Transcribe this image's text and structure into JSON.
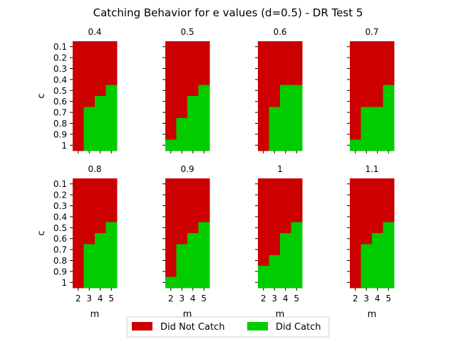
{
  "chart_data": {
    "type": "heatmap",
    "title": "Catching Behavior for e values (d=0.5) - DR Test 5",
    "xlabel": "m",
    "ylabel": "c",
    "x_categories": [
      "2",
      "3",
      "4",
      "5"
    ],
    "y_categories": [
      "0.1",
      "0.2",
      "0.3",
      "0.4",
      "0.5",
      "0.6",
      "0.7",
      "0.8",
      "0.9",
      "1"
    ],
    "legend": {
      "placement": "bottom-center",
      "items": [
        {
          "label": "Did Not Catch",
          "color": "#cc0000"
        },
        {
          "label": "Did Catch",
          "color": "#00cc00"
        }
      ]
    },
    "panels": [
      {
        "title": "0.4",
        "catch_from_c": [
          11,
          7,
          6,
          5
        ]
      },
      {
        "title": "0.5",
        "catch_from_c": [
          10,
          8,
          6,
          5
        ]
      },
      {
        "title": "0.6",
        "catch_from_c": [
          11,
          7,
          5,
          5
        ]
      },
      {
        "title": "0.7",
        "catch_from_c": [
          10,
          7,
          7,
          5
        ]
      },
      {
        "title": "0.8",
        "catch_from_c": [
          11,
          7,
          6,
          5
        ]
      },
      {
        "title": "0.9",
        "catch_from_c": [
          10,
          7,
          6,
          5
        ]
      },
      {
        "title": "1",
        "catch_from_c": [
          9,
          8,
          6,
          5
        ]
      },
      {
        "title": "1.1",
        "catch_from_c": [
          11,
          7,
          6,
          5
        ]
      }
    ]
  }
}
